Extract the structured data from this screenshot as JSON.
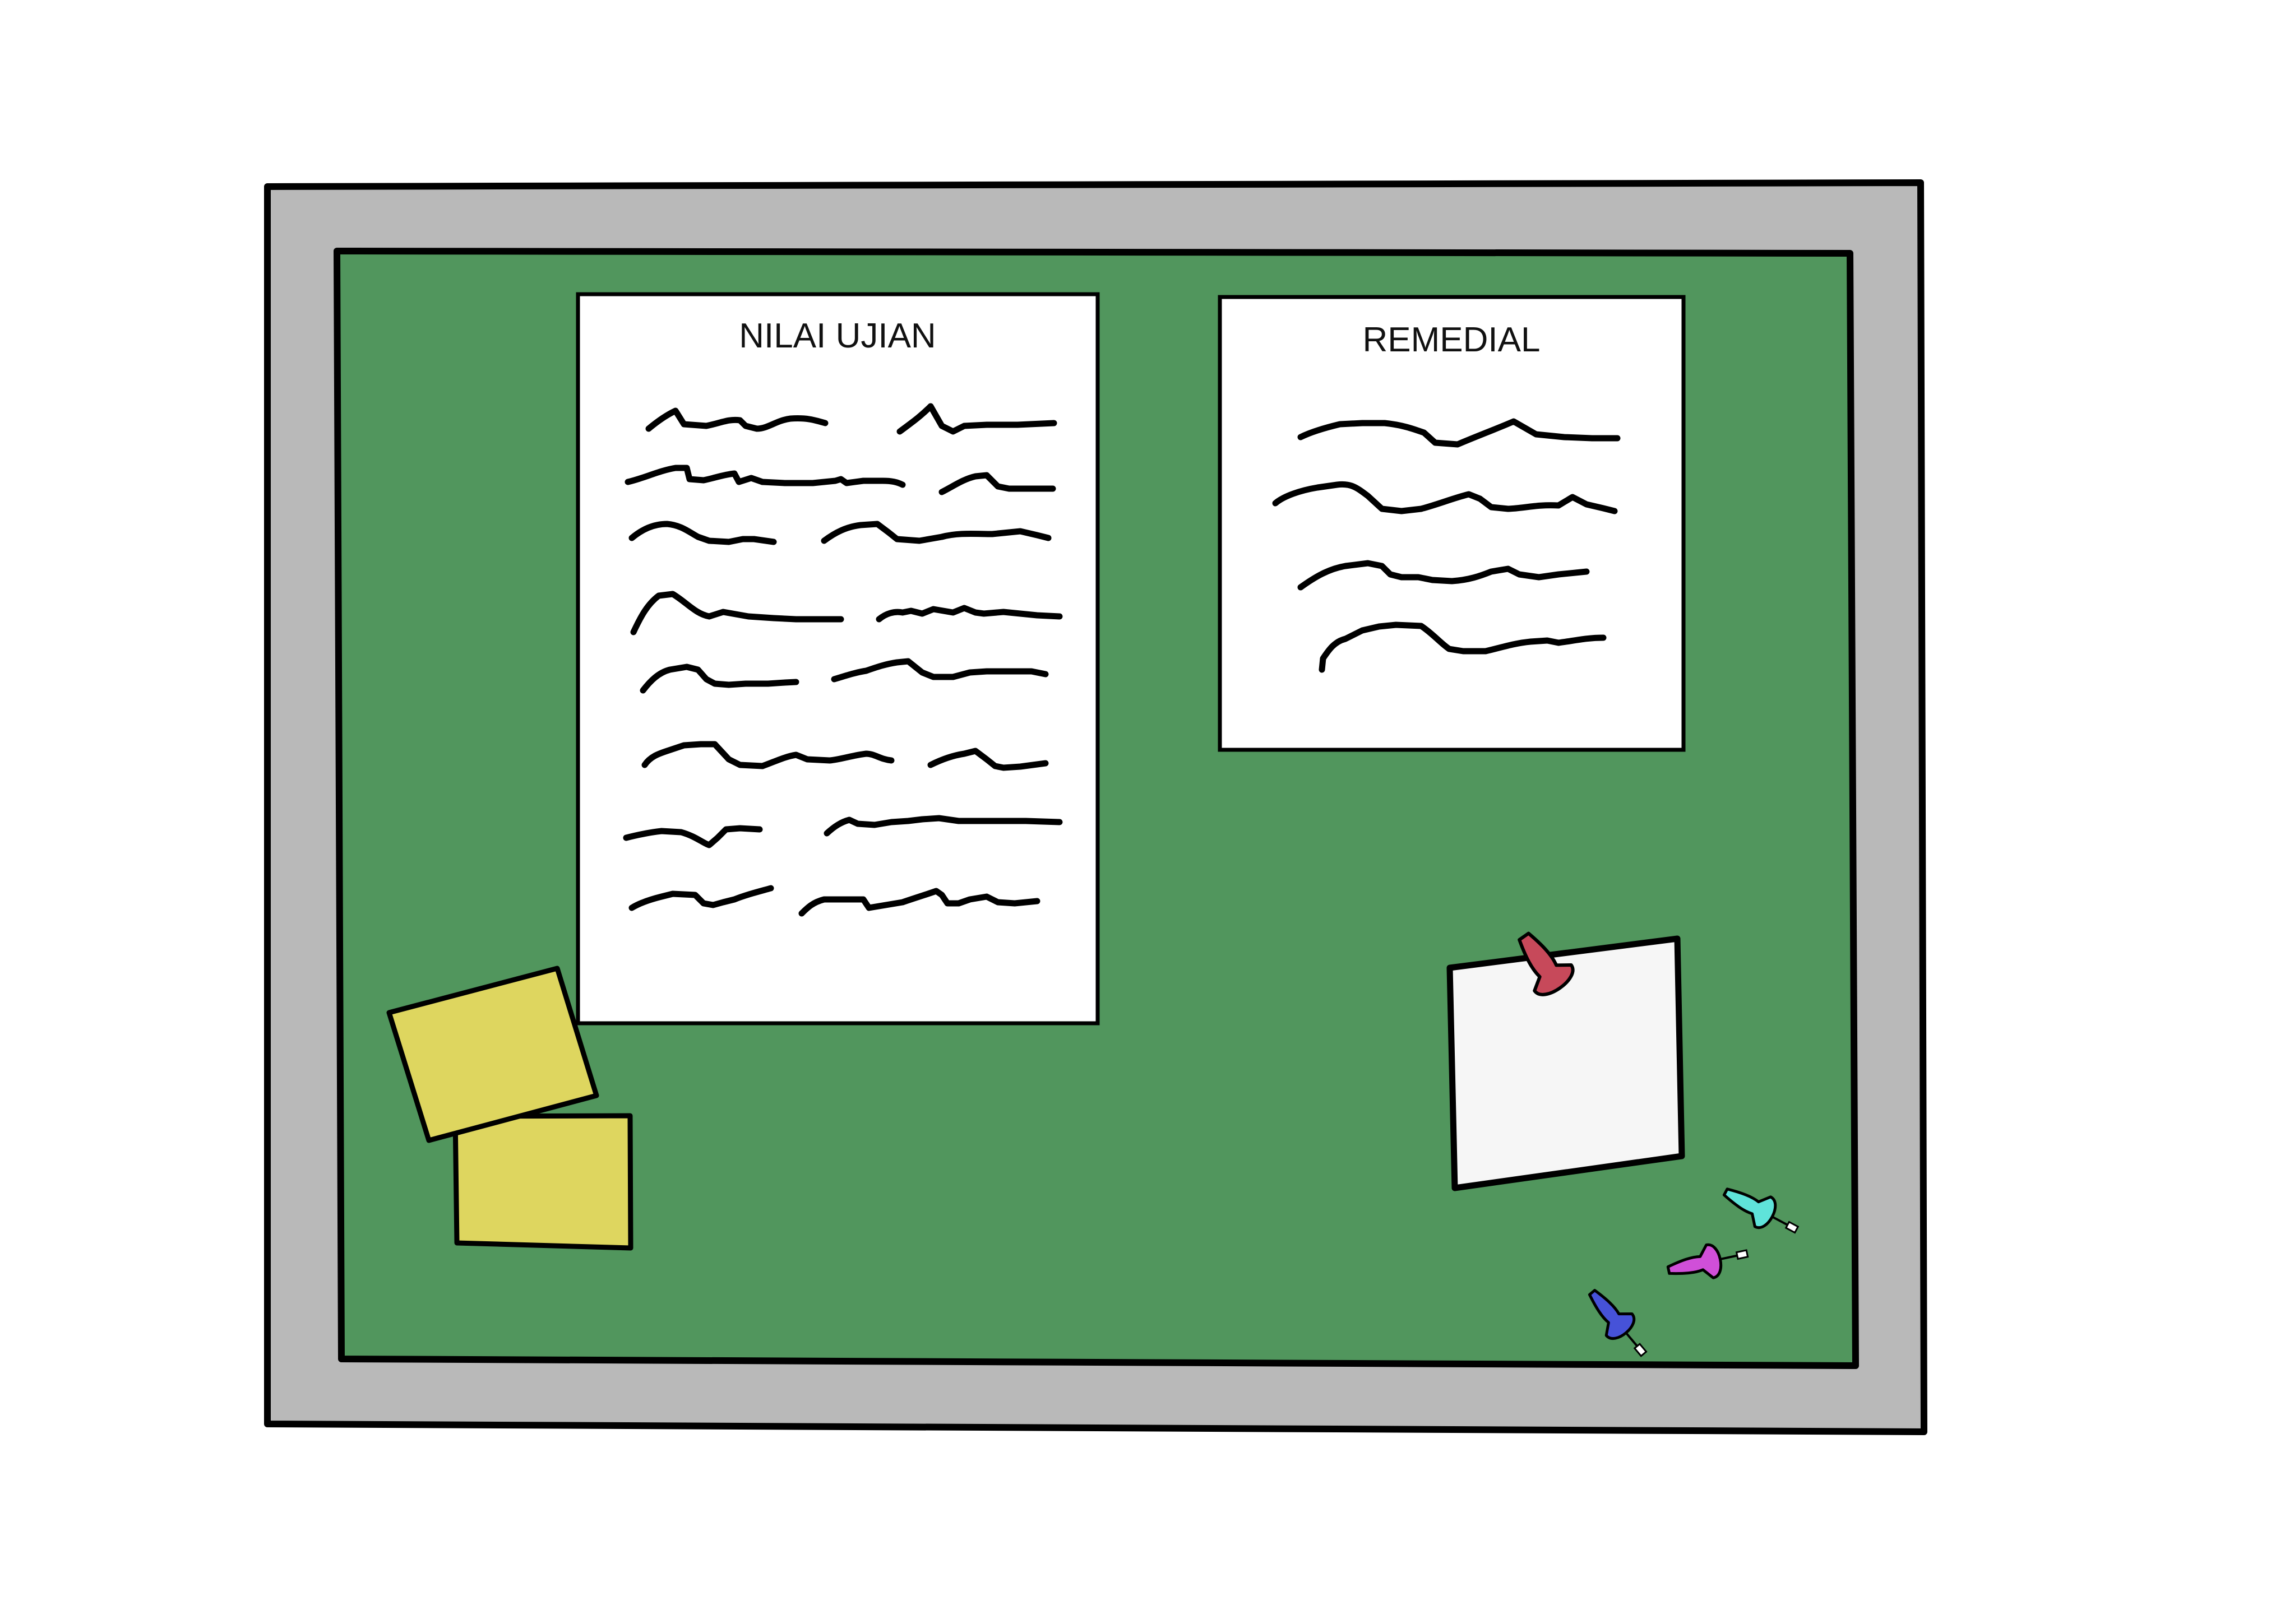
{
  "board": {
    "frame_color": "#b9b9b9",
    "cork_color": "#51965d",
    "outline_color": "#000000"
  },
  "papers": [
    {
      "title": "NILAI UJIAN",
      "paper_color": "#ffffff",
      "scribble_lines": 16
    },
    {
      "title": "REMEDIAL",
      "paper_color": "#ffffff",
      "scribble_lines": 4
    }
  ],
  "sticky_notes": {
    "color": "#ded65f",
    "count": 2
  },
  "pinned_note": {
    "color": "#f6f6f6",
    "pin": "pushpin-icon",
    "pin_color": "#c7495a"
  },
  "loose_pins": [
    {
      "icon": "pushpin-icon",
      "color": "#5fe3da"
    },
    {
      "icon": "pushpin-icon",
      "color": "#d04fd8"
    },
    {
      "icon": "pushpin-icon",
      "color": "#4652d8"
    }
  ]
}
